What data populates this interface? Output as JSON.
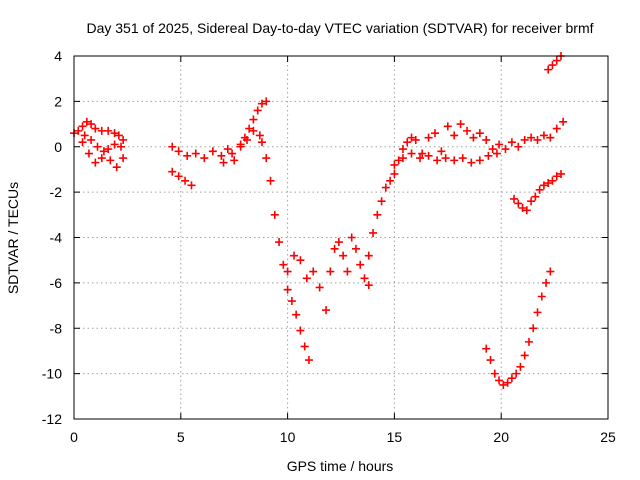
{
  "chart_data": {
    "type": "scatter",
    "title": "Day 351 of 2025, Sidereal Day-to-day VTEC variation (SDTVAR) for receiver brmf",
    "xlabel": "GPS time / hours",
    "ylabel": "SDTVAR / TECUs",
    "xlim": [
      0,
      25
    ],
    "ylim": [
      -12,
      4
    ],
    "xticks": [
      0,
      5,
      10,
      15,
      20,
      25
    ],
    "yticks": [
      -12,
      -10,
      -8,
      -6,
      -4,
      -2,
      0,
      2,
      4
    ],
    "grid": true,
    "marker": "+",
    "color": "#ff0000",
    "series": [
      {
        "x": [
          0.0,
          0.2,
          0.4,
          0.6,
          0.8,
          1.0,
          1.3,
          1.6,
          1.9,
          2.1,
          2.3,
          0.4,
          0.7,
          1.0,
          1.3,
          1.6,
          1.9,
          2.2,
          0.5,
          0.8,
          1.1,
          1.4,
          1.7,
          2.0,
          2.3
        ],
        "y": [
          0.6,
          0.7,
          0.9,
          1.1,
          1.0,
          0.8,
          0.7,
          0.7,
          0.6,
          0.5,
          0.3,
          0.2,
          -0.3,
          -0.7,
          -0.5,
          -0.1,
          0.1,
          0.0,
          0.5,
          0.3,
          0.0,
          -0.2,
          -0.6,
          -0.9,
          -0.5
        ]
      },
      {
        "x": [
          4.6,
          4.9,
          5.2,
          5.5,
          4.6,
          4.9,
          5.3,
          5.7,
          6.1,
          6.5,
          6.9,
          7.2,
          7.5,
          7.8,
          8.0,
          8.2,
          8.4,
          8.6,
          8.8,
          9.0,
          7.0,
          7.4,
          7.8,
          8.1,
          8.4,
          8.7
        ],
        "y": [
          -1.1,
          -1.3,
          -1.5,
          -1.7,
          0.0,
          -0.2,
          -0.4,
          -0.3,
          -0.5,
          -0.2,
          -0.4,
          -0.1,
          -0.6,
          0.1,
          0.4,
          0.8,
          1.2,
          1.6,
          1.9,
          2.0,
          -0.7,
          -0.3,
          0.0,
          0.3,
          0.7,
          0.5
        ]
      },
      {
        "x": [
          8.8,
          9.0,
          9.2,
          9.4,
          9.6,
          9.8,
          10.0,
          10.2,
          10.4,
          10.6,
          10.8,
          11.0,
          10.0,
          10.3,
          10.6,
          10.9,
          11.2,
          11.5,
          11.8,
          12.0,
          12.2,
          12.4,
          12.6,
          12.8,
          13.0,
          13.2,
          13.4,
          13.6,
          13.8
        ],
        "y": [
          0.2,
          -0.5,
          -1.5,
          -3.0,
          -4.2,
          -5.2,
          -6.3,
          -6.8,
          -7.4,
          -8.1,
          -8.8,
          -9.4,
          -5.5,
          -4.8,
          -5.0,
          -5.8,
          -5.5,
          -6.2,
          -7.2,
          -5.5,
          -4.5,
          -4.2,
          -4.8,
          -5.5,
          -4.0,
          -4.5,
          -5.2,
          -5.8,
          -6.1
        ]
      },
      {
        "x": [
          13.8,
          14.0,
          14.2,
          14.4,
          14.6,
          14.8,
          15.0,
          15.2,
          15.4,
          15.6,
          15.8,
          16.0,
          16.3,
          16.6,
          16.9,
          17.2,
          17.5,
          17.8,
          18.1,
          18.4,
          18.7,
          19.0,
          19.3,
          19.6,
          19.9,
          20.2,
          20.5,
          20.8,
          21.1,
          21.4,
          21.7,
          22.0,
          22.3,
          22.6,
          22.9
        ],
        "y": [
          -4.8,
          -3.8,
          -3.0,
          -2.4,
          -1.8,
          -1.5,
          -1.2,
          -0.6,
          -0.1,
          0.2,
          0.4,
          0.3,
          -0.3,
          0.4,
          0.6,
          -0.2,
          0.9,
          0.5,
          1.0,
          0.7,
          0.4,
          0.6,
          0.3,
          -0.1,
          0.1,
          -0.1,
          0.2,
          0.0,
          0.3,
          0.4,
          0.3,
          0.5,
          0.4,
          0.8,
          1.1
        ]
      },
      {
        "x": [
          15.0,
          15.4,
          15.8,
          16.2,
          16.6,
          17.0,
          17.4,
          17.8,
          18.2,
          18.6,
          19.0,
          19.4,
          19.8
        ],
        "y": [
          -0.8,
          -0.5,
          -0.3,
          -0.5,
          -0.4,
          -0.6,
          -0.5,
          -0.6,
          -0.5,
          -0.7,
          -0.6,
          -0.4,
          -0.3
        ]
      },
      {
        "x": [
          20.6,
          20.8,
          21.0,
          21.2,
          21.4,
          21.6,
          21.8,
          22.0,
          22.2,
          22.4,
          22.6,
          22.8,
          22.2,
          22.4,
          22.6,
          22.8
        ],
        "y": [
          -2.3,
          -2.5,
          -2.7,
          -2.8,
          -2.4,
          -2.2,
          -1.9,
          -1.7,
          -1.6,
          -1.5,
          -1.3,
          -1.2,
          3.4,
          3.6,
          3.8,
          4.0
        ]
      },
      {
        "x": [
          19.3,
          19.5,
          19.7,
          19.9,
          20.1,
          20.3,
          20.5,
          20.7,
          20.9,
          21.1,
          21.3,
          21.5,
          21.7,
          21.9,
          22.1,
          22.3
        ],
        "y": [
          -8.9,
          -9.4,
          -10.0,
          -10.3,
          -10.5,
          -10.4,
          -10.2,
          -10.0,
          -9.7,
          -9.2,
          -8.6,
          -8.0,
          -7.3,
          -6.6,
          -6.0,
          -5.5
        ]
      }
    ]
  }
}
